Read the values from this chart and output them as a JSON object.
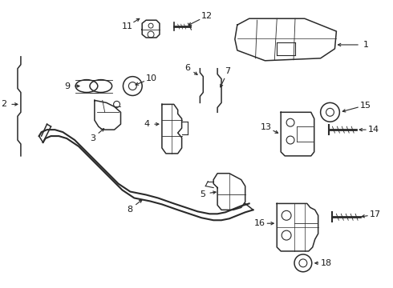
{
  "background_color": "#ffffff",
  "line_color": "#2a2a2a",
  "label_color": "#1a1a1a",
  "fig_w": 4.9,
  "fig_h": 3.6,
  "dpi": 100,
  "lw": 1.1
}
